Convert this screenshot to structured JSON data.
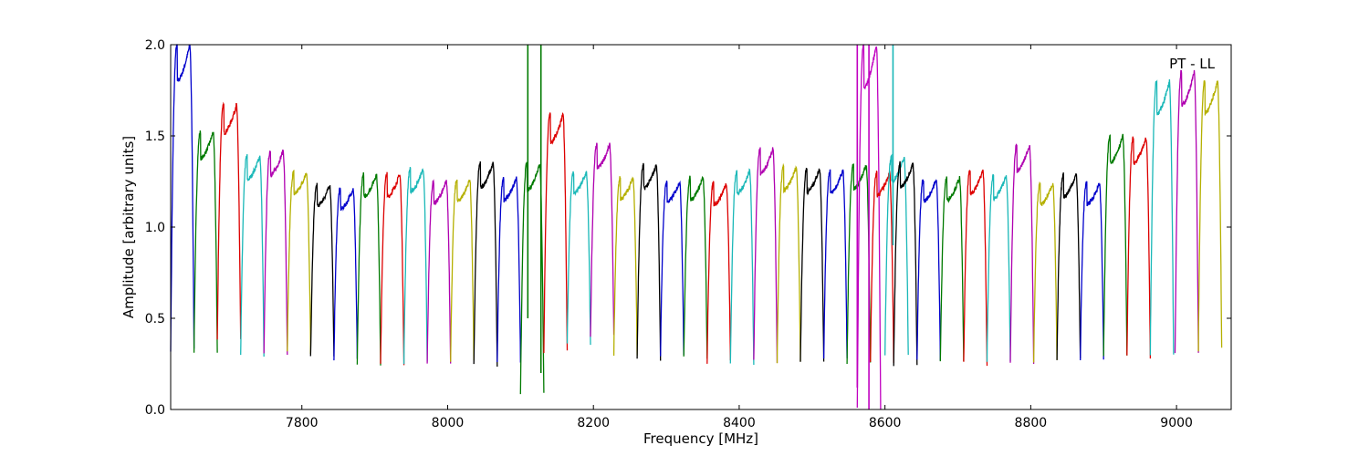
{
  "chart_data": {
    "type": "line",
    "title": "",
    "xlabel": "Frequency [MHz]",
    "ylabel": "Amplitude [arbitrary units]",
    "xlim": [
      7620,
      9075
    ],
    "ylim": [
      0.0,
      2.0
    ],
    "xticks": [
      7800,
      8000,
      8200,
      8400,
      8600,
      8800,
      9000
    ],
    "yticks": [
      0.0,
      0.5,
      1.0,
      1.5,
      2.0
    ],
    "ytick_labels": [
      "0.0",
      "0.5",
      "1.0",
      "1.5",
      "2.0"
    ],
    "grid": false,
    "annotation": "PT - LL",
    "channel_width_mhz": 32,
    "channels": [
      {
        "start": 7620,
        "low": 0.33,
        "high": 2.0,
        "color": "#0000cc"
      },
      {
        "start": 7652,
        "low": 0.32,
        "high": 1.52,
        "color": "#007a00"
      },
      {
        "start": 7684,
        "low": 0.38,
        "high": 1.67,
        "color": "#dd0000"
      },
      {
        "start": 7716,
        "low": 0.29,
        "high": 1.39,
        "color": "#1ab8b8"
      },
      {
        "start": 7748,
        "low": 0.3,
        "high": 1.42,
        "color": "#b000b0"
      },
      {
        "start": 7780,
        "low": 0.31,
        "high": 1.3,
        "color": "#b5b000"
      },
      {
        "start": 7812,
        "low": 0.28,
        "high": 1.23,
        "color": "#000000"
      },
      {
        "start": 7844,
        "low": 0.28,
        "high": 1.21,
        "color": "#0000cc"
      },
      {
        "start": 7876,
        "low": 0.25,
        "high": 1.29,
        "color": "#007a00"
      },
      {
        "start": 7908,
        "low": 0.25,
        "high": 1.29,
        "color": "#dd0000"
      },
      {
        "start": 7940,
        "low": 0.26,
        "high": 1.32,
        "color": "#1ab8b8"
      },
      {
        "start": 7972,
        "low": 0.26,
        "high": 1.25,
        "color": "#b000b0"
      },
      {
        "start": 8004,
        "low": 0.26,
        "high": 1.26,
        "color": "#b5b000"
      },
      {
        "start": 8036,
        "low": 0.24,
        "high": 1.35,
        "color": "#000000"
      },
      {
        "start": 8068,
        "low": 0.25,
        "high": 1.27,
        "color": "#0000cc"
      },
      {
        "start": 8100,
        "low": 0.09,
        "high": 1.35,
        "color": "#007a00"
      },
      {
        "start": 8132,
        "low": 0.32,
        "high": 1.62,
        "color": "#dd0000"
      },
      {
        "start": 8164,
        "low": 0.35,
        "high": 1.3,
        "color": "#1ab8b8"
      },
      {
        "start": 8196,
        "low": 0.4,
        "high": 1.45,
        "color": "#b000b0"
      },
      {
        "start": 8228,
        "low": 0.3,
        "high": 1.27,
        "color": "#b5b000"
      },
      {
        "start": 8260,
        "low": 0.28,
        "high": 1.34,
        "color": "#000000"
      },
      {
        "start": 8292,
        "low": 0.3,
        "high": 1.25,
        "color": "#0000cc"
      },
      {
        "start": 8324,
        "low": 0.28,
        "high": 1.27,
        "color": "#007a00"
      },
      {
        "start": 8356,
        "low": 0.26,
        "high": 1.24,
        "color": "#dd0000"
      },
      {
        "start": 8388,
        "low": 0.25,
        "high": 1.31,
        "color": "#1ab8b8"
      },
      {
        "start": 8420,
        "low": 0.26,
        "high": 1.43,
        "color": "#b000b0"
      },
      {
        "start": 8452,
        "low": 0.25,
        "high": 1.33,
        "color": "#b5b000"
      },
      {
        "start": 8484,
        "low": 0.26,
        "high": 1.32,
        "color": "#000000"
      },
      {
        "start": 8516,
        "low": 0.27,
        "high": 1.31,
        "color": "#0000cc"
      },
      {
        "start": 8548,
        "low": 0.26,
        "high": 1.34,
        "color": "#007a00"
      },
      {
        "start": 8562,
        "low": 0.0,
        "high": 2.0,
        "color": "#c000c0"
      },
      {
        "start": 8580,
        "low": 0.25,
        "high": 1.3,
        "color": "#dd0000"
      },
      {
        "start": 8600,
        "low": 0.3,
        "high": 1.38,
        "color": "#1ab8b8"
      },
      {
        "start": 8612,
        "low": 0.24,
        "high": 1.35,
        "color": "#000000"
      },
      {
        "start": 8644,
        "low": 0.27,
        "high": 1.26,
        "color": "#0000cc"
      },
      {
        "start": 8676,
        "low": 0.26,
        "high": 1.27,
        "color": "#007a00"
      },
      {
        "start": 8708,
        "low": 0.25,
        "high": 1.31,
        "color": "#dd0000"
      },
      {
        "start": 8740,
        "low": 0.26,
        "high": 1.28,
        "color": "#1ab8b8"
      },
      {
        "start": 8772,
        "low": 0.26,
        "high": 1.45,
        "color": "#b000b0"
      },
      {
        "start": 8804,
        "low": 0.26,
        "high": 1.24,
        "color": "#b5b000"
      },
      {
        "start": 8836,
        "low": 0.27,
        "high": 1.29,
        "color": "#000000"
      },
      {
        "start": 8868,
        "low": 0.28,
        "high": 1.24,
        "color": "#0000cc"
      },
      {
        "start": 8900,
        "low": 0.3,
        "high": 1.5,
        "color": "#007a00"
      },
      {
        "start": 8932,
        "low": 0.29,
        "high": 1.49,
        "color": "#dd0000"
      },
      {
        "start": 8964,
        "low": 0.3,
        "high": 1.8,
        "color": "#1ab8b8"
      },
      {
        "start": 8998,
        "low": 0.31,
        "high": 1.85,
        "color": "#b000b0"
      },
      {
        "start": 9030,
        "low": 0.33,
        "high": 1.8,
        "color": "#b5b000"
      }
    ],
    "spikes": [
      {
        "x": 8110,
        "y_from": 0.5,
        "y_to": 2.0,
        "color": "#007a00"
      },
      {
        "x": 8128,
        "y_from": 0.2,
        "y_to": 2.0,
        "color": "#007a00"
      },
      {
        "x": 8562,
        "y_from": 0.12,
        "y_to": 2.0,
        "color": "#c000c0"
      },
      {
        "x": 8578,
        "y_from": 0.0,
        "y_to": 2.0,
        "color": "#c000c0"
      },
      {
        "x": 8611,
        "y_from": 0.9,
        "y_to": 2.0,
        "color": "#1ab8b8"
      }
    ]
  }
}
